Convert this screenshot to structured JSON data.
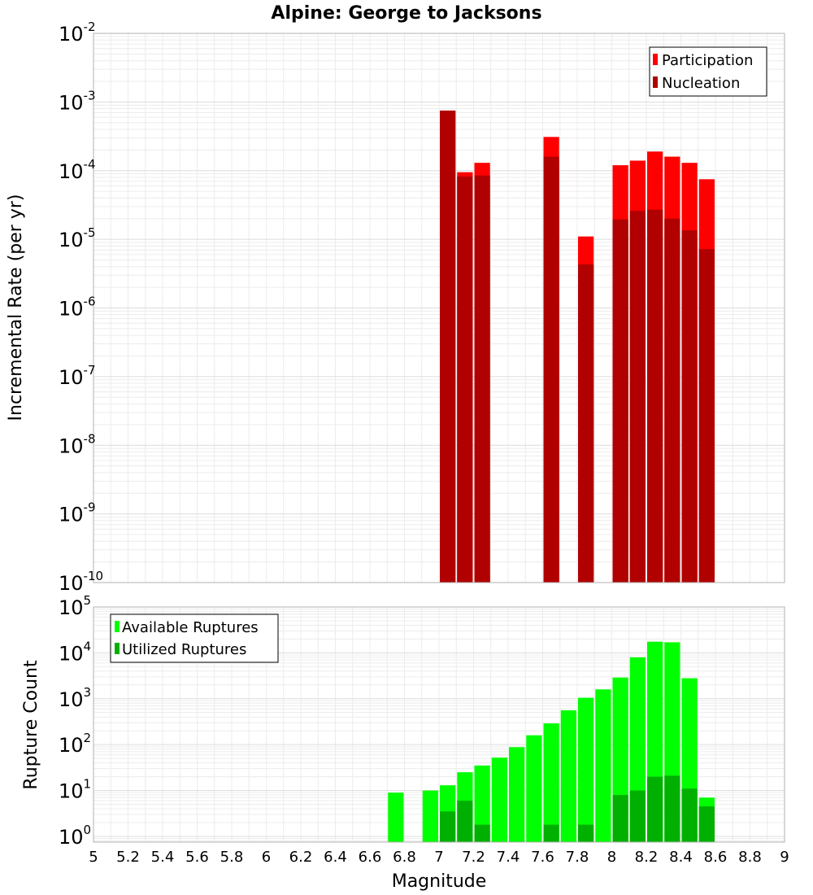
{
  "chart_data": [
    {
      "type": "bar",
      "title": "Alpine: George to Jacksons",
      "xlabel": "",
      "ylabel": "Incremental Rate (per yr)",
      "yscale": "log",
      "xlim": [
        5,
        9
      ],
      "ylim": [
        1e-10,
        0.01
      ],
      "grid": true,
      "legend_position": "top-right",
      "legend_title": "",
      "bar_width": 0.1,
      "series": [
        {
          "name": "Participation",
          "color": "#ff0000",
          "x": [
            7.05,
            7.15,
            7.25,
            7.65,
            7.85,
            8.05,
            8.15,
            8.25,
            8.35,
            8.45,
            8.55
          ],
          "values": [
            0.00075,
            9.5e-05,
            0.00013,
            0.00031,
            1.1e-05,
            0.00012,
            0.00014,
            0.00019,
            0.00016,
            0.00013,
            7.5e-05
          ]
        },
        {
          "name": "Nucleation",
          "color": "#b00000",
          "x": [
            7.05,
            7.15,
            7.25,
            7.65,
            7.85,
            8.05,
            8.15,
            8.25,
            8.35,
            8.45,
            8.55
          ],
          "values": [
            0.00075,
            8.2e-05,
            8.5e-05,
            0.00016,
            4.3e-06,
            1.95e-05,
            2.6e-05,
            2.7e-05,
            2e-05,
            1.35e-05,
            7.2e-06
          ]
        }
      ]
    },
    {
      "type": "bar",
      "title": "",
      "xlabel": "Magnitude",
      "ylabel": "Rupture Count",
      "yscale": "log",
      "xlim": [
        5,
        9
      ],
      "ylim": [
        0.75,
        100000.0
      ],
      "xticks": [
        "5",
        "5.2",
        "5.4",
        "5.6",
        "5.8",
        "6",
        "6.2",
        "6.4",
        "6.6",
        "6.8",
        "7",
        "7.2",
        "7.4",
        "7.6",
        "7.8",
        "8",
        "8.2",
        "8.4",
        "8.6",
        "8.8",
        "9"
      ],
      "grid": true,
      "legend_position": "top-left",
      "bar_width": 0.1,
      "series": [
        {
          "name": "Available Ruptures",
          "color": "#00ff00",
          "x": [
            6.75,
            6.95,
            7.05,
            7.15,
            7.25,
            7.35,
            7.45,
            7.55,
            7.65,
            7.75,
            7.85,
            7.95,
            8.05,
            8.15,
            8.25,
            8.35,
            8.45,
            8.55
          ],
          "values": [
            9,
            10,
            13,
            25,
            35,
            52,
            88,
            160,
            290,
            560,
            1050,
            1600,
            2900,
            8000,
            17500,
            17000,
            2800,
            7
          ]
        },
        {
          "name": "Utilized Ruptures",
          "color": "#00b000",
          "x": [
            7.05,
            7.15,
            7.25,
            7.65,
            7.85,
            8.05,
            8.15,
            8.25,
            8.35,
            8.45,
            8.55
          ],
          "values": [
            3.5,
            6,
            1.8,
            1.8,
            1.8,
            8,
            10,
            20,
            21,
            11,
            4.5
          ]
        }
      ]
    }
  ]
}
